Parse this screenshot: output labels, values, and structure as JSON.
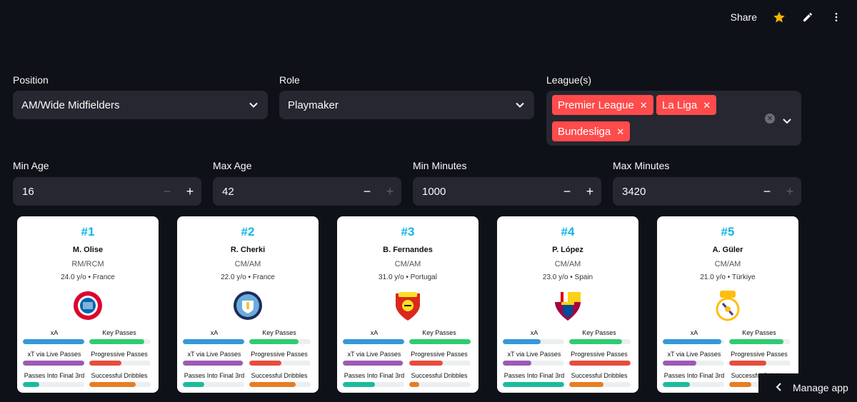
{
  "header": {
    "share_label": "Share",
    "icons": [
      "star-icon",
      "pencil-icon",
      "more-vert-icon"
    ]
  },
  "filters": {
    "position": {
      "label": "Position",
      "value": "AM/Wide Midfielders"
    },
    "role": {
      "label": "Role",
      "value": "Playmaker"
    },
    "leagues": {
      "label": "League(s)",
      "tags": [
        "Premier League",
        "La Liga",
        "Bundesliga"
      ]
    },
    "min_age": {
      "label": "Min Age",
      "value": "16"
    },
    "max_age": {
      "label": "Max Age",
      "value": "42"
    },
    "min_minutes": {
      "label": "Min Minutes",
      "value": "1000"
    },
    "max_minutes": {
      "label": "Max Minutes",
      "value": "3420"
    }
  },
  "metric_labels": [
    "xA",
    "Key Passes",
    "xT via Live Passes",
    "Progressive Passes",
    "Passes Into Final 3rd",
    "Successful Dribbles"
  ],
  "metric_colors": [
    "#3498db",
    "#2ecc71",
    "#9b59b6",
    "#e74c3c",
    "#1abc9c",
    "#e67e22"
  ],
  "players": [
    {
      "rank": "#1",
      "name": "M. Olise",
      "pos": "RM/RCM",
      "meta": "24.0 y/o • France",
      "club": "fc-bayern-crest",
      "metrics": [
        1.0,
        0.9,
        1.0,
        0.52,
        0.27,
        0.75
      ]
    },
    {
      "rank": "#2",
      "name": "R. Cherki",
      "pos": "CM/AM",
      "meta": "22.0 y/o • France",
      "club": "man-city-crest",
      "metrics": [
        1.0,
        0.8,
        0.98,
        0.52,
        0.35,
        0.75
      ]
    },
    {
      "rank": "#3",
      "name": "B. Fernandes",
      "pos": "CM/AM",
      "meta": "31.0 y/o • Portugal",
      "club": "man-united-crest",
      "metrics": [
        1.0,
        1.0,
        0.98,
        0.55,
        0.52,
        0.16
      ]
    },
    {
      "rank": "#4",
      "name": "P. López",
      "pos": "CM/AM",
      "meta": "23.0 y/o • Spain",
      "club": "fc-barcelona-crest",
      "metrics": [
        0.62,
        0.86,
        0.47,
        1.0,
        1.0,
        0.56
      ]
    },
    {
      "rank": "#5",
      "name": "A. Güler",
      "pos": "CM/AM",
      "meta": "21.0 y/o • Türkiye",
      "club": "real-madrid-crest",
      "metrics": [
        0.95,
        0.88,
        0.55,
        0.6,
        0.44,
        0.36
      ]
    }
  ],
  "manage_app": {
    "label": "Manage app"
  }
}
